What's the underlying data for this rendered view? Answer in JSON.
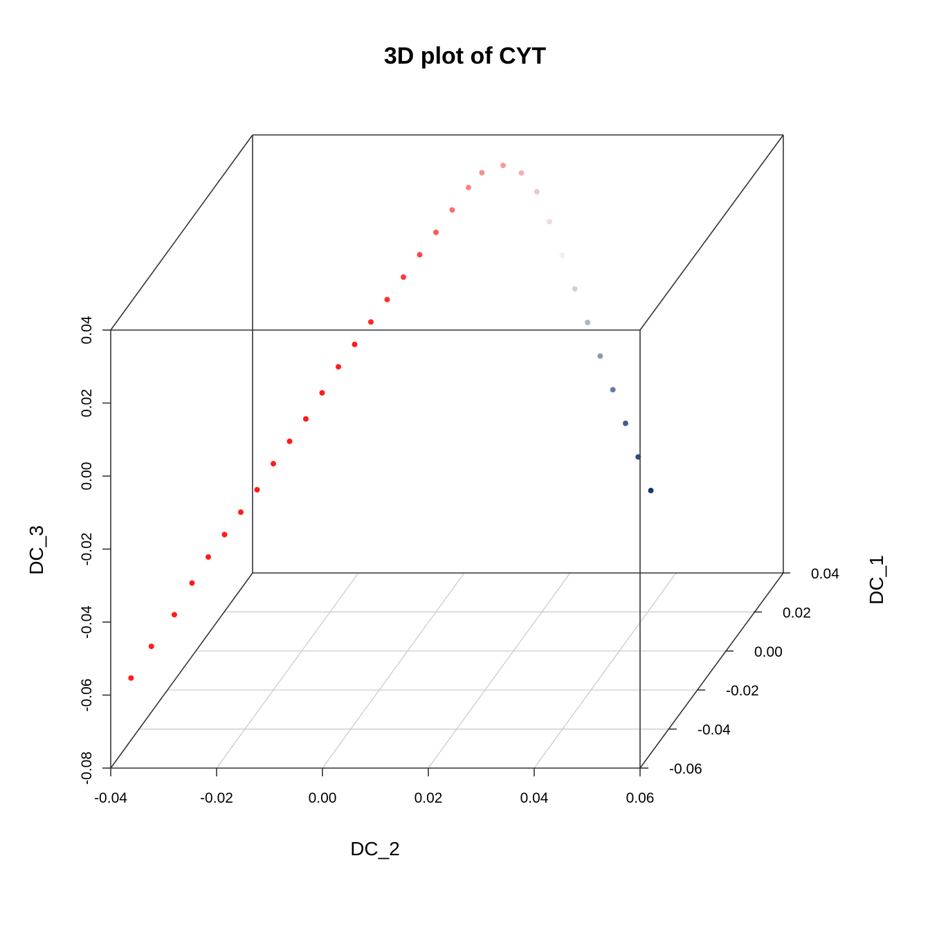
{
  "chart_data": {
    "type": "scatter",
    "title": "3D plot of CYT",
    "xlabel": "DC_2",
    "ylabel": "DC_1",
    "zlabel": "DC_3",
    "x_ticks": [
      "-0.04",
      "-0.02",
      "0.00",
      "0.02",
      "0.04",
      "0.06"
    ],
    "y_ticks": [
      "-0.06",
      "-0.04",
      "-0.02",
      "0.00",
      "0.02",
      "0.04"
    ],
    "z_ticks": [
      "-0.08",
      "-0.06",
      "-0.04",
      "-0.02",
      "0.00",
      "0.02",
      "0.04"
    ],
    "xlim": [
      -0.04,
      0.06
    ],
    "ylim": [
      -0.06,
      0.04
    ],
    "zlim": [
      -0.08,
      0.04
    ],
    "grid": true,
    "color_scale": {
      "low": "#08306b",
      "mid": "#f0f0f0",
      "high": "#ff1a1a"
    },
    "points": [
      {
        "x": -0.0375,
        "y": -0.055,
        "z": -0.058,
        "c": 1.0
      },
      {
        "x": -0.035,
        "y": -0.05,
        "z": -0.052,
        "c": 1.0
      },
      {
        "x": -0.032,
        "y": -0.045,
        "z": -0.046,
        "c": 1.0
      },
      {
        "x": -0.03,
        "y": -0.04,
        "z": -0.04,
        "c": 1.0
      },
      {
        "x": -0.028,
        "y": -0.036,
        "z": -0.035,
        "c": 1.0
      },
      {
        "x": -0.026,
        "y": -0.032,
        "z": -0.031,
        "c": 1.0
      },
      {
        "x": -0.024,
        "y": -0.028,
        "z": -0.027,
        "c": 1.0
      },
      {
        "x": -0.022,
        "y": -0.024,
        "z": -0.023,
        "c": 1.0
      },
      {
        "x": -0.02,
        "y": -0.02,
        "z": -0.018,
        "c": 1.0
      },
      {
        "x": -0.018,
        "y": -0.016,
        "z": -0.014,
        "c": 1.0
      },
      {
        "x": -0.016,
        "y": -0.012,
        "z": -0.01,
        "c": 1.0
      },
      {
        "x": -0.014,
        "y": -0.008,
        "z": -0.005,
        "c": 1.0
      },
      {
        "x": -0.012,
        "y": -0.004,
        "z": 0.0,
        "c": 1.0
      },
      {
        "x": -0.01,
        "y": 0.0,
        "z": 0.004,
        "c": 1.0
      },
      {
        "x": -0.008,
        "y": 0.004,
        "z": 0.008,
        "c": 0.95
      },
      {
        "x": -0.006,
        "y": 0.008,
        "z": 0.012,
        "c": 0.9
      },
      {
        "x": -0.004,
        "y": 0.012,
        "z": 0.016,
        "c": 0.85
      },
      {
        "x": -0.002,
        "y": 0.016,
        "z": 0.02,
        "c": 0.8
      },
      {
        "x": 0.0,
        "y": 0.02,
        "z": 0.024,
        "c": 0.7
      },
      {
        "x": 0.002,
        "y": 0.024,
        "z": 0.028,
        "c": 0.6
      },
      {
        "x": 0.004,
        "y": 0.028,
        "z": 0.032,
        "c": 0.5
      },
      {
        "x": 0.006,
        "y": 0.03,
        "z": 0.035,
        "c": 0.45
      },
      {
        "x": 0.01,
        "y": 0.03,
        "z": 0.037,
        "c": 0.4
      },
      {
        "x": 0.014,
        "y": 0.028,
        "z": 0.036,
        "c": 0.3
      },
      {
        "x": 0.018,
        "y": 0.024,
        "z": 0.033,
        "c": 0.2
      },
      {
        "x": 0.022,
        "y": 0.018,
        "z": 0.028,
        "c": 0.1
      },
      {
        "x": 0.026,
        "y": 0.012,
        "z": 0.022,
        "c": 0.0
      },
      {
        "x": 0.03,
        "y": 0.006,
        "z": 0.016,
        "c": -0.15
      },
      {
        "x": 0.034,
        "y": 0.0,
        "z": 0.01,
        "c": -0.3
      },
      {
        "x": 0.038,
        "y": -0.006,
        "z": 0.004,
        "c": -0.45
      },
      {
        "x": 0.042,
        "y": -0.012,
        "z": -0.002,
        "c": -0.6
      },
      {
        "x": 0.046,
        "y": -0.018,
        "z": -0.008,
        "c": -0.75
      },
      {
        "x": 0.05,
        "y": -0.024,
        "z": -0.014,
        "c": -0.85
      },
      {
        "x": 0.054,
        "y": -0.03,
        "z": -0.02,
        "c": -0.95
      }
    ]
  }
}
